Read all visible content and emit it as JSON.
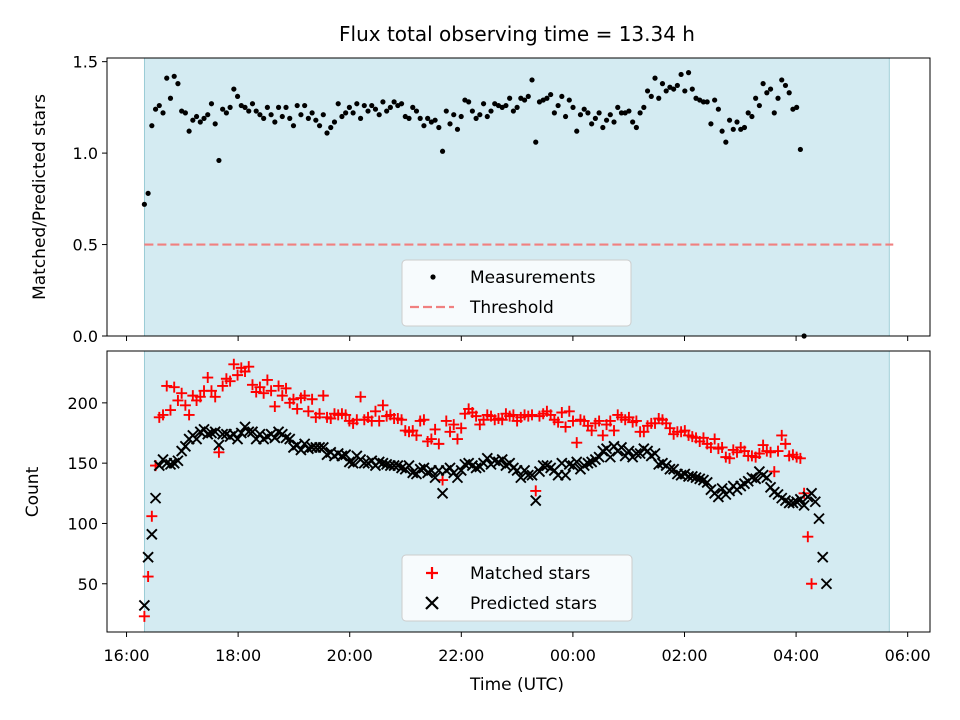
{
  "chart_data": [
    {
      "type": "scatter",
      "title": "Flux total observing time = 13.34 h",
      "ylabel": "Matched/Predicted stars",
      "xlabel": "",
      "xlim": [
        15.65,
        30.4
      ],
      "ylim": [
        0.0,
        1.52
      ],
      "yticks": [
        0.0,
        0.5,
        1.0,
        1.5
      ],
      "ytick_labels": [
        "0.0",
        "0.5",
        "1.0",
        "1.5"
      ],
      "observing_window": [
        16.32,
        29.67
      ],
      "threshold": 0.5,
      "legend": {
        "position": "lower-center",
        "entries": [
          "Measurements",
          "Threshold"
        ]
      },
      "series": [
        {
          "name": "Measurements",
          "marker": "dot",
          "color": "#000000",
          "x_start": 16.32,
          "x_step": 0.0668,
          "values": [
            0.72,
            0.78,
            1.15,
            1.24,
            1.26,
            1.22,
            1.41,
            1.3,
            1.42,
            1.38,
            1.23,
            1.22,
            1.12,
            1.18,
            1.2,
            1.17,
            1.19,
            1.21,
            1.27,
            1.16,
            0.96,
            1.24,
            1.22,
            1.25,
            1.35,
            1.31,
            1.26,
            1.25,
            1.23,
            1.27,
            1.23,
            1.21,
            1.19,
            1.25,
            1.21,
            1.17,
            1.25,
            1.2,
            1.25,
            1.19,
            1.15,
            1.26,
            1.21,
            1.26,
            1.19,
            1.22,
            1.18,
            1.15,
            1.21,
            1.11,
            1.14,
            1.17,
            1.27,
            1.2,
            1.22,
            1.25,
            1.22,
            1.27,
            1.19,
            1.26,
            1.23,
            1.26,
            1.24,
            1.21,
            1.28,
            1.23,
            1.25,
            1.28,
            1.26,
            1.27,
            1.2,
            1.19,
            1.25,
            1.23,
            1.19,
            1.15,
            1.19,
            1.17,
            1.18,
            1.14,
            1.01,
            1.23,
            1.16,
            1.21,
            1.13,
            1.2,
            1.29,
            1.28,
            1.23,
            1.19,
            1.21,
            1.27,
            1.2,
            1.23,
            1.27,
            1.26,
            1.25,
            1.26,
            1.3,
            1.23,
            1.25,
            1.3,
            1.29,
            1.31,
            1.4,
            1.06,
            1.28,
            1.29,
            1.3,
            1.32,
            1.22,
            1.26,
            1.31,
            1.2,
            1.29,
            1.25,
            1.12,
            1.21,
            1.24,
            1.22,
            1.16,
            1.19,
            1.22,
            1.14,
            1.18,
            1.21,
            1.17,
            1.25,
            1.22,
            1.22,
            1.23,
            1.17,
            1.14,
            1.22,
            1.25,
            1.34,
            1.31,
            1.41,
            1.3,
            1.38,
            1.34,
            1.36,
            1.35,
            1.37,
            1.43,
            1.34,
            1.44,
            1.35,
            1.3,
            1.29,
            1.28,
            1.28,
            1.16,
            1.29,
            1.24,
            1.12,
            1.06,
            1.18,
            1.13,
            1.17,
            1.13,
            1.14,
            1.22,
            1.2,
            1.3,
            1.26,
            1.38,
            1.33,
            1.35,
            1.22,
            1.3,
            1.4,
            1.37,
            1.33,
            1.24,
            1.25,
            1.02,
            0.0
          ]
        }
      ]
    },
    {
      "type": "scatter",
      "title": "",
      "xlabel": "Time (UTC)",
      "ylabel": "Count",
      "xlim": [
        15.65,
        30.4
      ],
      "ylim": [
        10,
        243
      ],
      "yticks": [
        50,
        100,
        150,
        200
      ],
      "ytick_labels": [
        "50",
        "100",
        "150",
        "200"
      ],
      "xticks": [
        16,
        18,
        20,
        22,
        24,
        26,
        28,
        30
      ],
      "xtick_labels": [
        "16:00",
        "18:00",
        "20:00",
        "22:00",
        "00:00",
        "02:00",
        "04:00",
        "06:00"
      ],
      "observing_window": [
        16.32,
        29.67
      ],
      "legend": {
        "position": "lower-center",
        "entries": [
          "Matched stars",
          "Predicted stars"
        ]
      },
      "series": [
        {
          "name": "Matched stars",
          "marker": "plus",
          "color": "#ff0000",
          "x_start": 16.32,
          "x_step": 0.0668,
          "values": [
            23,
            56,
            106,
            148,
            188,
            190,
            214,
            194,
            213,
            202,
            208,
            198,
            190,
            206,
            202,
            205,
            210,
            221,
            210,
            205,
            159,
            214,
            220,
            218,
            232,
            223,
            229,
            226,
            230,
            215,
            209,
            213,
            208,
            219,
            210,
            197,
            214,
            206,
            212,
            200,
            203,
            195,
            204,
            206,
            193,
            203,
            188,
            191,
            206,
            188,
            187,
            191,
            190,
            191,
            190,
            185,
            183,
            186,
            205,
            186,
            188,
            185,
            193,
            185,
            198,
            189,
            190,
            187,
            187,
            186,
            177,
            176,
            177,
            173,
            185,
            186,
            168,
            170,
            178,
            166,
            136,
            185,
            176,
            182,
            170,
            179,
            191,
            195,
            192,
            189,
            182,
            186,
            190,
            189,
            186,
            187,
            186,
            191,
            189,
            190,
            185,
            188,
            190,
            189,
            190,
            127,
            189,
            191,
            193,
            190,
            186,
            184,
            192,
            180,
            193,
            185,
            167,
            186,
            185,
            181,
            177,
            183,
            185,
            173,
            182,
            185,
            177,
            190,
            188,
            186,
            188,
            184,
            185,
            176,
            176,
            181,
            183,
            183,
            187,
            186,
            183,
            179,
            174,
            176,
            176,
            177,
            173,
            172,
            171,
            168,
            171,
            166,
            163,
            170,
            162,
            163,
            155,
            154,
            161,
            159,
            163,
            160,
            156,
            156,
            155,
            158,
            165,
            160,
            159,
            143,
            160,
            173,
            166,
            156,
            157,
            155,
            154,
            125,
            89,
            50
          ]
        },
        {
          "name": "Predicted stars",
          "marker": "cross",
          "color": "#000000",
          "x_start": 16.32,
          "x_step": 0.0668,
          "values": [
            32,
            72,
            91,
            121,
            148,
            153,
            150,
            149,
            150,
            152,
            160,
            164,
            170,
            173,
            170,
            176,
            178,
            174,
            175,
            176,
            165,
            174,
            174,
            172,
            174,
            170,
            175,
            180,
            176,
            176,
            170,
            174,
            170,
            172,
            174,
            171,
            176,
            174,
            171,
            170,
            163,
            165,
            161,
            166,
            162,
            163,
            163,
            163,
            163,
            157,
            159,
            156,
            158,
            156,
            157,
            151,
            150,
            156,
            153,
            150,
            150,
            152,
            148,
            151,
            150,
            149,
            148,
            148,
            148,
            146,
            145,
            148,
            142,
            141,
            145,
            146,
            142,
            144,
            138,
            144,
            125,
            144,
            146,
            142,
            138,
            144,
            149,
            150,
            148,
            146,
            147,
            150,
            154,
            149,
            152,
            151,
            153,
            148,
            150,
            146,
            144,
            138,
            144,
            140,
            140,
            119,
            143,
            148,
            148,
            146,
            144,
            140,
            150,
            140,
            149,
            148,
            151,
            145,
            148,
            150,
            151,
            153,
            155,
            160,
            162,
            155,
            164,
            160,
            163,
            156,
            160,
            155,
            158,
            158,
            162,
            160,
            156,
            158,
            149,
            150,
            148,
            145,
            145,
            141,
            140,
            141,
            139,
            139,
            138,
            137,
            136,
            134,
            128,
            125,
            122,
            129,
            124,
            127,
            131,
            128,
            131,
            133,
            135,
            138,
            137,
            143,
            140,
            138,
            130,
            126,
            124,
            121,
            119,
            117,
            117,
            118,
            120,
            115,
            122,
            125,
            118,
            104,
            72,
            50
          ]
        }
      ]
    }
  ]
}
